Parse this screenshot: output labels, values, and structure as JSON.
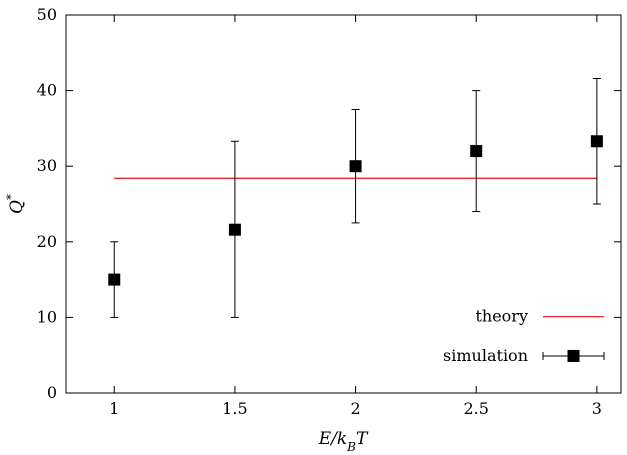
{
  "chart_data": {
    "type": "scatter",
    "title": "",
    "xlabel": "E/k_BT",
    "ylabel": "Q*",
    "xlim": [
      0.8,
      3.1
    ],
    "ylim": [
      0,
      50
    ],
    "x_ticks": [
      "1",
      "1.5",
      "2",
      "2.5",
      "3"
    ],
    "y_ticks": [
      "0",
      "10",
      "20",
      "30",
      "40",
      "50"
    ],
    "grid": false,
    "legend_position": "bottom-right",
    "series": [
      {
        "name": "theory",
        "kind": "line",
        "color": "#e8262b",
        "x": [
          1,
          3
        ],
        "y": [
          28.4,
          28.4
        ]
      },
      {
        "name": "simulation",
        "kind": "points-with-errorbars",
        "color": "#000000",
        "marker": "square",
        "points": [
          {
            "x": 1.0,
            "y": 15.0,
            "lo": 10.0,
            "hi": 20.0
          },
          {
            "x": 1.5,
            "y": 21.6,
            "lo": 10.0,
            "hi": 33.3
          },
          {
            "x": 2.0,
            "y": 30.0,
            "lo": 22.5,
            "hi": 37.5
          },
          {
            "x": 2.5,
            "y": 32.0,
            "lo": 24.0,
            "hi": 40.0
          },
          {
            "x": 3.0,
            "y": 33.3,
            "lo": 25.0,
            "hi": 41.6
          }
        ]
      }
    ]
  }
}
